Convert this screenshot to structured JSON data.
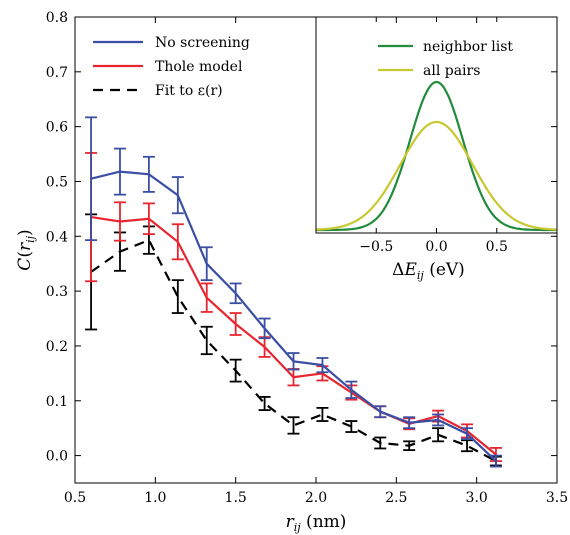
{
  "chart_data": [
    {
      "type": "line",
      "title": "",
      "xlabel": "r_ij (nm)",
      "ylabel": "C(r_ij)",
      "xlim": [
        0.5,
        3.5
      ],
      "ylim": [
        -0.05,
        0.8
      ],
      "xticks": [
        "0.5",
        "1.0",
        "1.5",
        "2.0",
        "2.5",
        "3.0",
        "3.5"
      ],
      "yticks": [
        "0.0",
        "0.1",
        "0.2",
        "0.3",
        "0.4",
        "0.5",
        "0.6",
        "0.7",
        "0.8"
      ],
      "legend_position": "top-left",
      "x": [
        0.6,
        0.78,
        0.96,
        1.14,
        1.32,
        1.5,
        1.68,
        1.86,
        2.04,
        2.22,
        2.4,
        2.58,
        2.76,
        2.94,
        3.12
      ],
      "series": [
        {
          "name": "No screening",
          "color": "#3a4fa3",
          "style": "solid",
          "values": [
            0.505,
            0.518,
            0.513,
            0.475,
            0.35,
            0.296,
            0.232,
            0.172,
            0.165,
            0.12,
            0.08,
            0.06,
            0.065,
            0.04,
            -0.01
          ],
          "errors": [
            0.112,
            0.042,
            0.032,
            0.033,
            0.03,
            0.018,
            0.018,
            0.015,
            0.013,
            0.015,
            0.01,
            0.01,
            0.01,
            0.01,
            0.01
          ]
        },
        {
          "name": "Thole model",
          "color": "#e8262f",
          "style": "solid",
          "values": [
            0.435,
            0.427,
            0.432,
            0.39,
            0.288,
            0.24,
            0.198,
            0.143,
            0.15,
            0.115,
            0.08,
            0.058,
            0.072,
            0.045,
            0.002
          ],
          "errors": [
            0.117,
            0.035,
            0.028,
            0.032,
            0.026,
            0.02,
            0.018,
            0.015,
            0.013,
            0.013,
            0.01,
            0.01,
            0.01,
            0.012,
            0.012
          ]
        },
        {
          "name": "Fit to ε(r)",
          "color": "#000000",
          "style": "dashed",
          "values": [
            0.335,
            0.372,
            0.393,
            0.29,
            0.21,
            0.155,
            0.095,
            0.055,
            0.075,
            0.053,
            0.023,
            0.018,
            0.038,
            0.018,
            -0.01
          ],
          "errors": [
            0.105,
            0.035,
            0.025,
            0.03,
            0.025,
            0.02,
            0.012,
            0.015,
            0.012,
            0.01,
            0.01,
            0.008,
            0.012,
            0.01,
            0.008
          ]
        }
      ]
    },
    {
      "type": "line",
      "title": "",
      "xlabel": "ΔE_ij (eV)",
      "ylabel": "",
      "xlim": [
        -1.0,
        1.0
      ],
      "xticks": [
        "−0.5",
        "0.0",
        "0.5"
      ],
      "legend_position": "top-right",
      "series": [
        {
          "name": "neighbor list",
          "color": "#228b3c",
          "distribution": "gaussian",
          "mean": 0.0,
          "sigma": 0.22,
          "peak": 1.0
        },
        {
          "name": "all pairs",
          "color": "#c8c832",
          "distribution": "gaussian",
          "mean": 0.0,
          "sigma": 0.3,
          "peak": 0.73
        }
      ]
    }
  ]
}
